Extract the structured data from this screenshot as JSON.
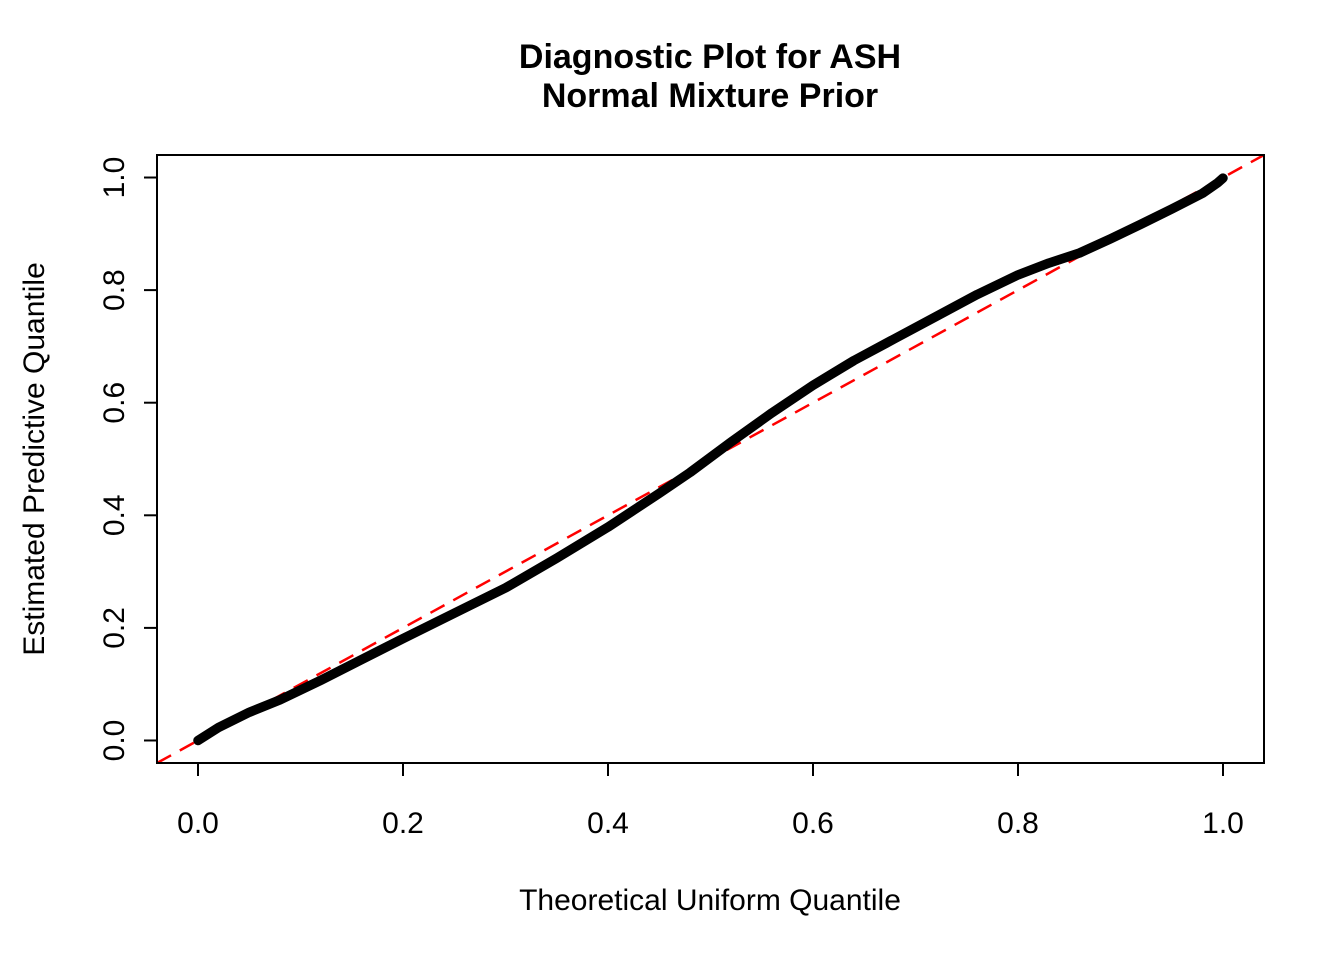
{
  "figure": {
    "title_line1": "Diagnostic Plot for ASH",
    "title_line2": "Normal Mixture Prior",
    "xlabel": "Theoretical Uniform Quantile",
    "ylabel": "Estimated Predictive Quantile"
  },
  "chart_data": {
    "type": "scatter",
    "title": "Diagnostic Plot for ASH\nNormal Mixture Prior",
    "xlabel": "Theoretical Uniform Quantile",
    "ylabel": "Estimated Predictive Quantile",
    "xlim": [
      -0.04,
      1.04
    ],
    "ylim": [
      -0.04,
      1.04
    ],
    "grid": false,
    "legend": "none",
    "x_tick_values": [
      0.0,
      0.2,
      0.4,
      0.6,
      0.8,
      1.0
    ],
    "y_tick_values": [
      0.0,
      0.2,
      0.4,
      0.6,
      0.8,
      1.0
    ],
    "x_tick_labels": [
      "0.0",
      "0.2",
      "0.4",
      "0.6",
      "0.8",
      "1.0"
    ],
    "y_tick_labels": [
      "0.0",
      "0.2",
      "0.4",
      "0.6",
      "0.8",
      "1.0"
    ],
    "colors": {
      "quantile_curve": "#000000",
      "reference_line": "#FF0000",
      "frame": "#000000",
      "background": "#FFFFFF"
    },
    "series": [
      {
        "name": "estimated-predictive-quantiles",
        "type": "line",
        "style": "solid-thick",
        "color": "#000000",
        "points": [
          [
            0.0,
            0.0
          ],
          [
            0.02,
            0.023
          ],
          [
            0.05,
            0.05
          ],
          [
            0.08,
            0.072
          ],
          [
            0.12,
            0.107
          ],
          [
            0.16,
            0.144
          ],
          [
            0.2,
            0.181
          ],
          [
            0.25,
            0.226
          ],
          [
            0.3,
            0.271
          ],
          [
            0.35,
            0.324
          ],
          [
            0.4,
            0.379
          ],
          [
            0.45,
            0.439
          ],
          [
            0.48,
            0.476
          ],
          [
            0.52,
            0.53
          ],
          [
            0.56,
            0.582
          ],
          [
            0.6,
            0.631
          ],
          [
            0.64,
            0.675
          ],
          [
            0.68,
            0.714
          ],
          [
            0.72,
            0.753
          ],
          [
            0.76,
            0.792
          ],
          [
            0.8,
            0.827
          ],
          [
            0.83,
            0.848
          ],
          [
            0.86,
            0.866
          ],
          [
            0.89,
            0.891
          ],
          [
            0.92,
            0.917
          ],
          [
            0.95,
            0.944
          ],
          [
            0.98,
            0.972
          ],
          [
            0.995,
            0.991
          ],
          [
            1.0,
            0.999
          ]
        ]
      },
      {
        "name": "reference-diagonal-y-equals-x",
        "type": "line",
        "style": "dashed",
        "color": "#FF0000",
        "points": [
          [
            -0.04,
            -0.04
          ],
          [
            1.04,
            1.04
          ]
        ]
      }
    ]
  }
}
